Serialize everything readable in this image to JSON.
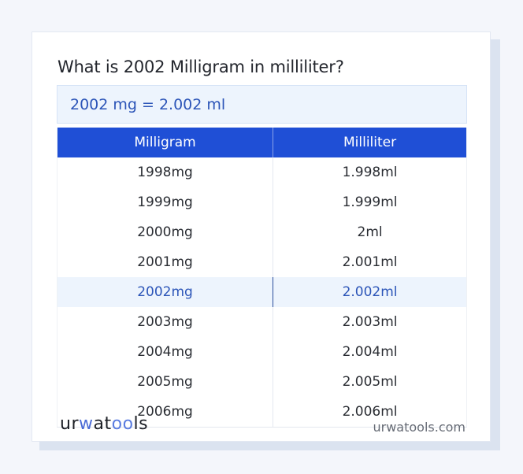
{
  "question": "What is 2002 Milligram in milliliter?",
  "result": "2002 mg = 2.002 ml",
  "table": {
    "headers": [
      "Milligram",
      "Milliliter"
    ],
    "rows": [
      {
        "mg": "1998mg",
        "ml": "1.998ml"
      },
      {
        "mg": "1999mg",
        "ml": "1.999ml"
      },
      {
        "mg": "2000mg",
        "ml": "2ml"
      },
      {
        "mg": "2001mg",
        "ml": "2.001ml"
      },
      {
        "mg": "2002mg",
        "ml": "2.002ml"
      },
      {
        "mg": "2003mg",
        "ml": "2.003ml"
      },
      {
        "mg": "2004mg",
        "ml": "2.004ml"
      },
      {
        "mg": "2005mg",
        "ml": "2.005ml"
      },
      {
        "mg": "2006mg",
        "ml": "2.006ml"
      }
    ],
    "highlighted_row": 4
  },
  "footer": {
    "logo": {
      "part1": "ur",
      "part2": "w",
      "part3": "at",
      "part4": "oo",
      "part5": "ls"
    },
    "site": "urwatools.com"
  },
  "colors": {
    "header_bg": "#1f4fd6",
    "accent_text": "#2c55b8",
    "highlight_bg": "#edf4fd"
  }
}
